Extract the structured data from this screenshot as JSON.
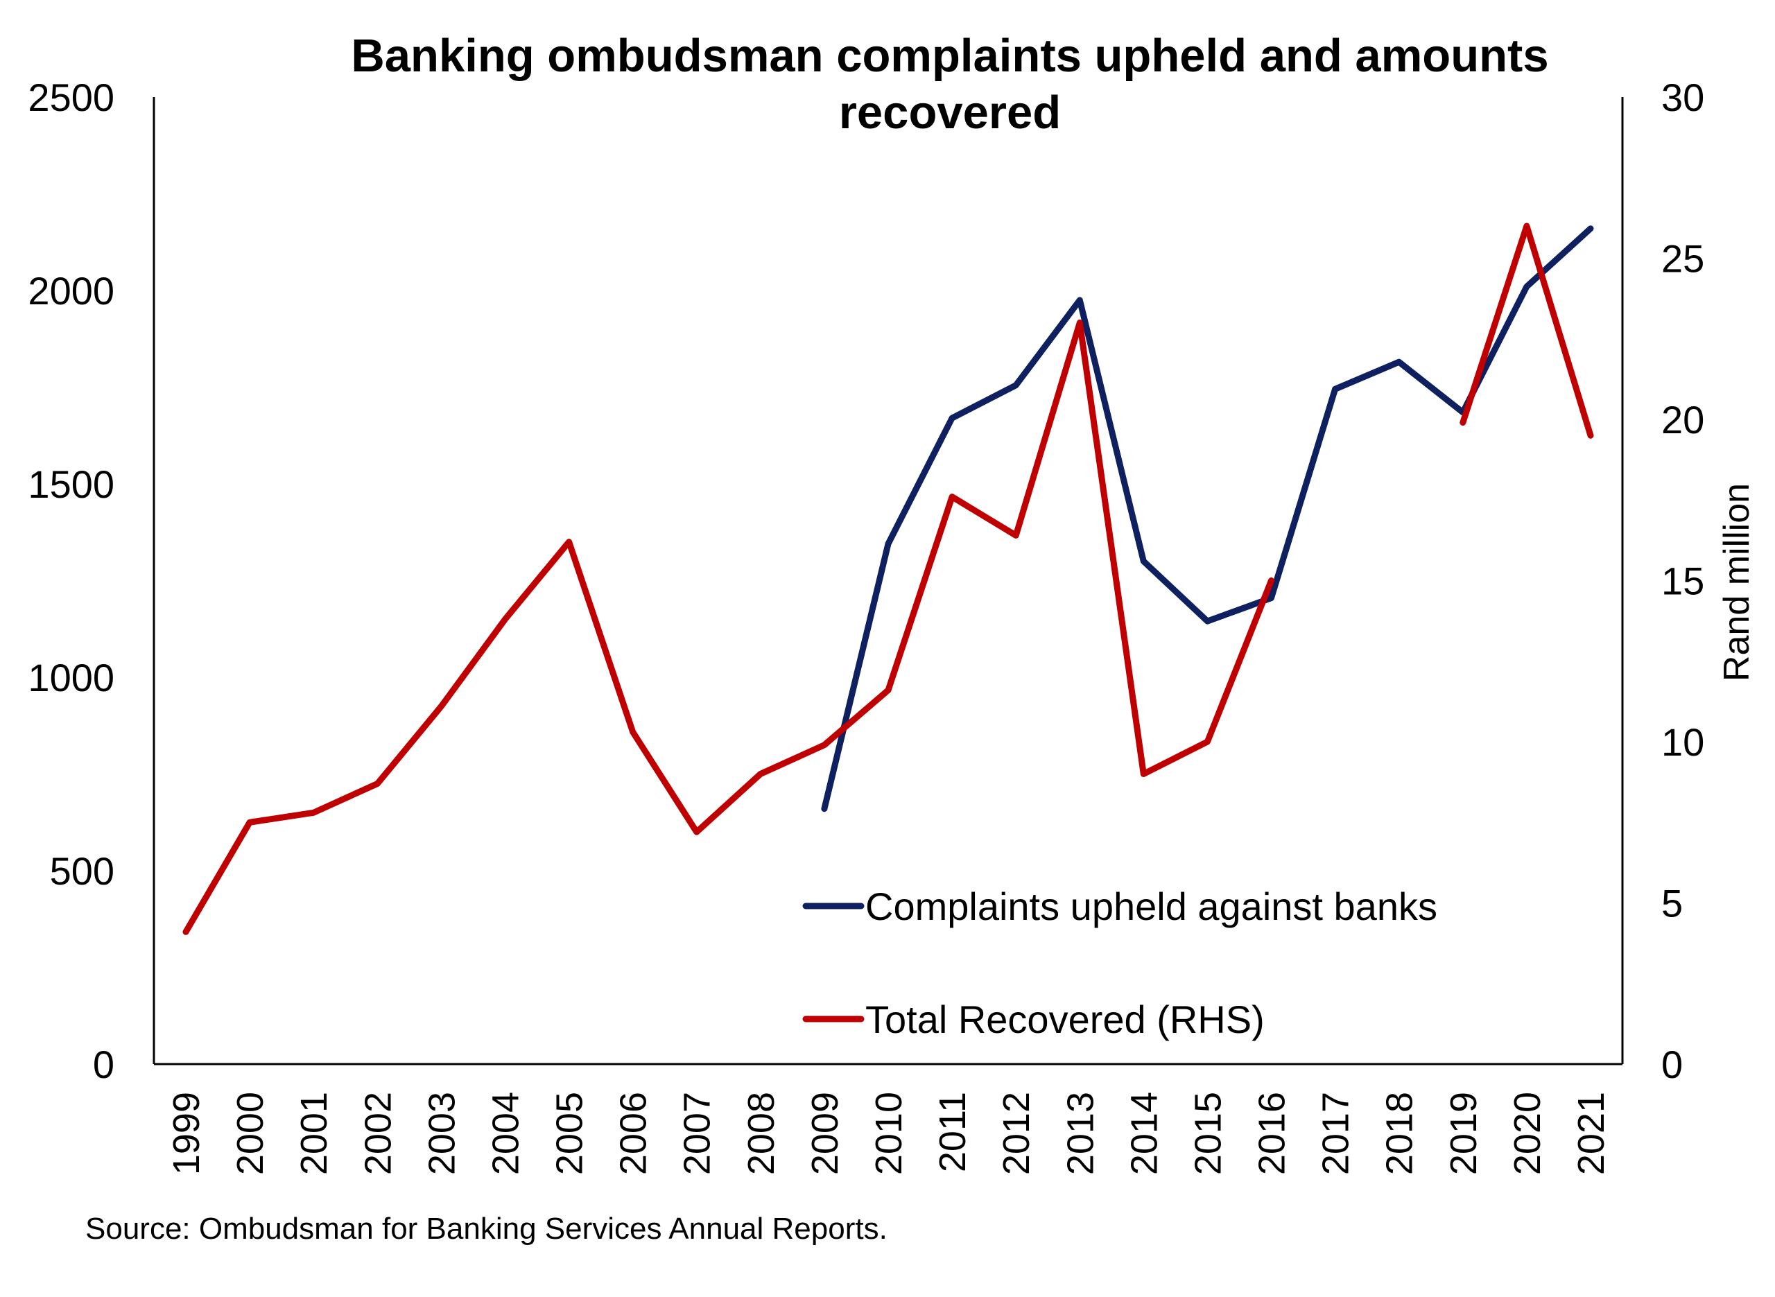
{
  "chart_data": {
    "type": "line",
    "title": "Banking ombudsman complaints upheld and amounts recovered",
    "categories": [
      "1999",
      "2000",
      "2001",
      "2002",
      "2003",
      "2004",
      "2005",
      "2006",
      "2007",
      "2008",
      "2009",
      "2010",
      "2011",
      "2012",
      "2013",
      "2014",
      "2015",
      "2016",
      "2017",
      "2018",
      "2019",
      "2020",
      "2021"
    ],
    "y_left": {
      "ylim": [
        0,
        2500
      ],
      "ticks": [
        "0",
        "500",
        "1000",
        "1500",
        "2000",
        "2500"
      ],
      "label": ""
    },
    "y_right": {
      "ylim": [
        0,
        30
      ],
      "ticks": [
        "0",
        "5",
        "10",
        "15",
        "20",
        "25",
        "30"
      ],
      "label": "Rand million"
    },
    "series": [
      {
        "name": "Complaints upheld against banks",
        "axis": "left",
        "color": "#0e2060",
        "values": [
          null,
          null,
          null,
          null,
          null,
          null,
          null,
          null,
          null,
          null,
          660,
          1345,
          1670,
          1755,
          1975,
          1300,
          1145,
          1205,
          1745,
          1815,
          1685,
          2010,
          2160
        ]
      },
      {
        "name": "Total Recovered (RHS)",
        "axis": "right",
        "color": "#c00000",
        "values": [
          4.1,
          7.5,
          7.8,
          8.7,
          11.1,
          13.8,
          16.2,
          10.3,
          7.2,
          9.0,
          9.9,
          11.6,
          17.6,
          16.4,
          23.0,
          9.0,
          10.0,
          15.0,
          null,
          null,
          19.9,
          26.0,
          19.5
        ]
      }
    ],
    "legend_position": "bottom-right-inside",
    "grid": false
  },
  "source_note": "Source: Ombudsman for Banking Services Annual Reports."
}
